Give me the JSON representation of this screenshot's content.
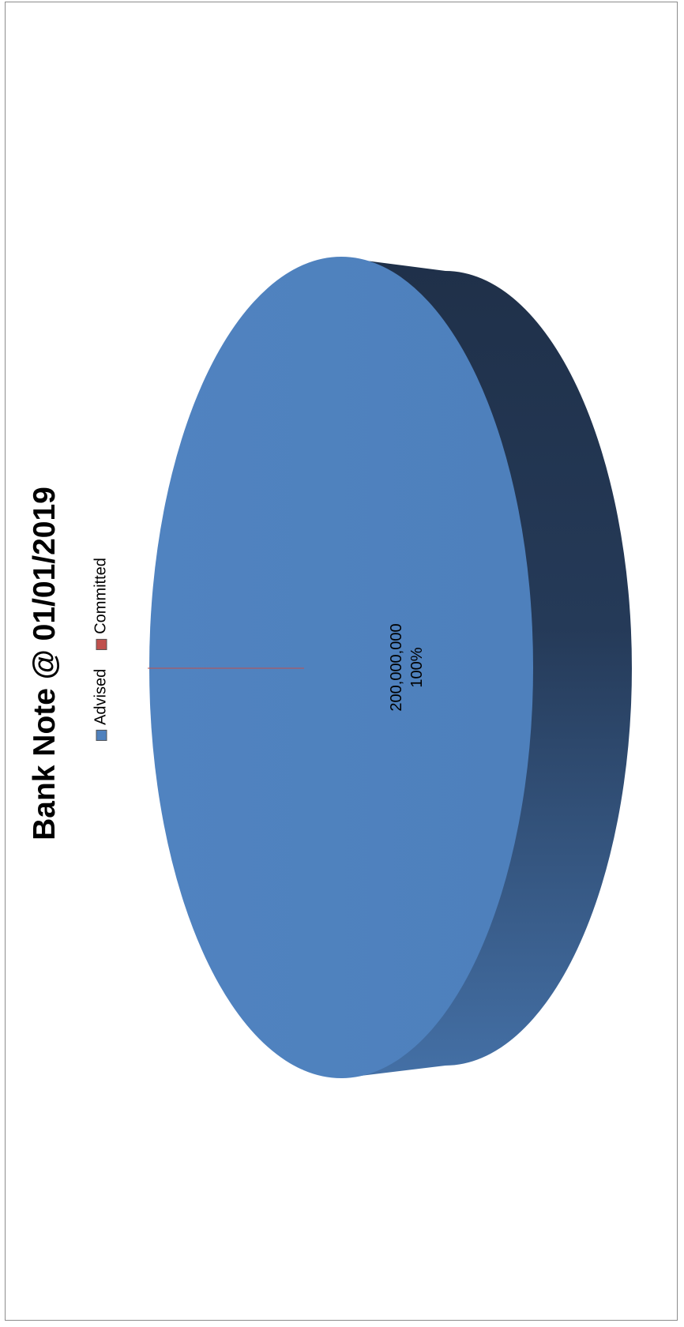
{
  "chart_data": {
    "type": "pie",
    "title": "Bank Note @ 01/01/2019",
    "categories": [
      "Advised",
      "Committed"
    ],
    "values": [
      200000000,
      0
    ],
    "data_labels": {
      "value": "200,000,000",
      "percent": "100%"
    },
    "legend": [
      {
        "name": "Advised",
        "color": "#4F81BD"
      },
      {
        "name": "Committed",
        "color": "#C0504D"
      }
    ],
    "legend_position": "top",
    "three_d": true
  },
  "colors": {
    "advised_top": "#4F81BD",
    "advised_side_dark": "#1F3049",
    "advised_side_light": "#4470A6",
    "committed": "#C0504D"
  }
}
